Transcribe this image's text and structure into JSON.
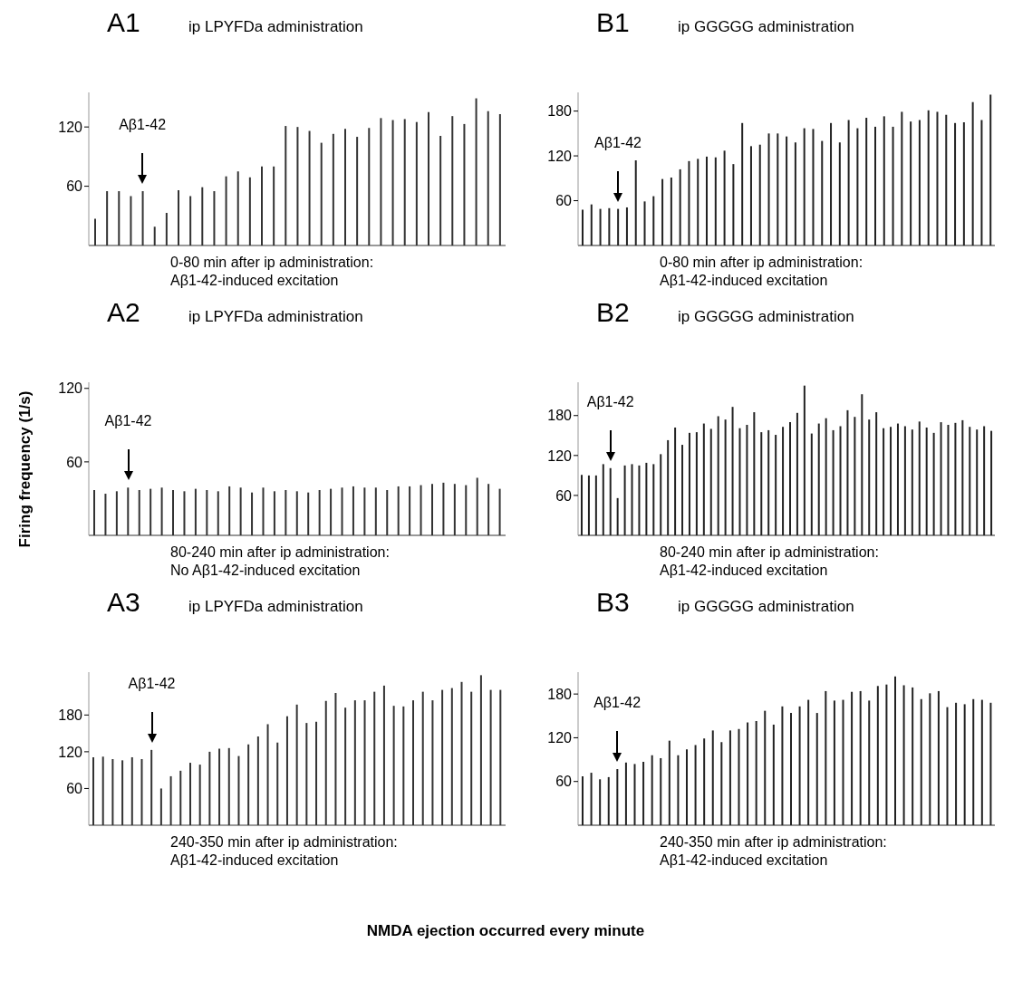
{
  "chart_data": [
    {
      "type": "bar",
      "title": "A1",
      "subtitle": "ip LPYFDa administration",
      "color": "#333333",
      "ylim": [
        0,
        155
      ],
      "yticks": [
        60,
        120
      ],
      "annotations": [
        "Aβ1-42",
        "0-80 min after ip administration:",
        "Aβ1-42-induced excitation"
      ],
      "categories": [
        null,
        null,
        null,
        null,
        null,
        null,
        null,
        null,
        null,
        null,
        null,
        null,
        null,
        null,
        null,
        null,
        null,
        null,
        null,
        null,
        null,
        null,
        null,
        null,
        null,
        null,
        null,
        null,
        null,
        null,
        null,
        null,
        null,
        null,
        null
      ],
      "values": [
        27,
        55,
        55,
        50,
        55,
        19,
        33,
        56,
        50,
        59,
        55,
        70,
        75,
        69,
        80,
        80,
        121,
        120,
        116,
        104,
        113,
        118,
        110,
        119,
        129,
        127,
        128,
        125,
        135,
        111,
        131,
        123,
        149,
        136,
        133
      ]
    },
    {
      "type": "bar",
      "title": "B1",
      "subtitle": "ip GGGGG administration",
      "color": "#222222",
      "ylim": [
        0,
        205
      ],
      "yticks": [
        60,
        120,
        180
      ],
      "annotations": [
        "Aβ1-42",
        "0-80 min after ip administration:",
        "Aβ1-42-induced excitation"
      ],
      "categories": [
        null,
        null,
        null,
        null,
        null,
        null,
        null,
        null,
        null,
        null,
        null,
        null,
        null,
        null,
        null,
        null,
        null,
        null,
        null,
        null,
        null,
        null,
        null,
        null,
        null,
        null,
        null,
        null,
        null,
        null,
        null,
        null,
        null,
        null,
        null,
        null,
        null,
        null,
        null,
        null,
        null,
        null,
        null,
        null,
        null,
        null,
        null
      ],
      "values": [
        48,
        55,
        49,
        50,
        49,
        51,
        114,
        59,
        66,
        89,
        91,
        102,
        113,
        116,
        119,
        118,
        127,
        109,
        164,
        133,
        135,
        150,
        150,
        146,
        138,
        157,
        156,
        140,
        164,
        138,
        168,
        157,
        171,
        159,
        173,
        159,
        179,
        166,
        168,
        181,
        179,
        175,
        164,
        165,
        192,
        168,
        202
      ]
    },
    {
      "type": "bar",
      "title": "A2",
      "subtitle": "ip LPYFDa administration",
      "color": "#333333",
      "ylim": [
        0,
        125
      ],
      "yticks": [
        60,
        120
      ],
      "ylabel": "Firing frequency (1/s)",
      "annotations": [
        "Aβ1-42",
        "80-240 min after ip administration:",
        "No Aβ1-42-induced excitation"
      ],
      "categories": [
        null,
        null,
        null,
        null,
        null,
        null,
        null,
        null,
        null,
        null,
        null,
        null,
        null,
        null,
        null,
        null,
        null,
        null,
        null,
        null,
        null,
        null,
        null,
        null,
        null,
        null,
        null,
        null,
        null,
        null,
        null,
        null,
        null,
        null,
        null,
        null,
        null
      ],
      "values": [
        37,
        34,
        36,
        39,
        37,
        38,
        39,
        37,
        36,
        38,
        37,
        36,
        40,
        39,
        35,
        39,
        36,
        37,
        36,
        35,
        37,
        38,
        39,
        40,
        39,
        39,
        37,
        40,
        40,
        41,
        42,
        43,
        42,
        41,
        47,
        42,
        38
      ]
    },
    {
      "type": "bar",
      "title": "B2",
      "subtitle": "ip GGGGG administration",
      "color": "#222222",
      "ylim": [
        0,
        230
      ],
      "yticks": [
        60,
        120,
        180
      ],
      "annotations": [
        "Aβ1-42",
        "80-240 min after ip administration:",
        "Aβ1-42-induced excitation"
      ],
      "categories": [
        null,
        null,
        null,
        null,
        null,
        null,
        null,
        null,
        null,
        null,
        null,
        null,
        null,
        null,
        null,
        null,
        null,
        null,
        null,
        null,
        null,
        null,
        null,
        null,
        null,
        null,
        null,
        null,
        null,
        null,
        null,
        null,
        null,
        null,
        null,
        null,
        null,
        null,
        null,
        null,
        null,
        null,
        null,
        null,
        null,
        null,
        null,
        null,
        null,
        null,
        null,
        null,
        null,
        null,
        null,
        null,
        null,
        null
      ],
      "values": [
        91,
        90,
        90,
        107,
        101,
        56,
        105,
        107,
        105,
        109,
        107,
        122,
        143,
        162,
        136,
        154,
        155,
        168,
        160,
        179,
        174,
        193,
        161,
        166,
        185,
        155,
        158,
        151,
        163,
        170,
        184,
        225,
        153,
        168,
        176,
        158,
        164,
        188,
        178,
        212,
        174,
        185,
        161,
        163,
        168,
        164,
        159,
        171,
        162,
        154,
        170,
        166,
        169,
        173,
        163,
        159,
        164,
        157
      ]
    },
    {
      "type": "bar",
      "title": "A3",
      "subtitle": "ip LPYFDa administration",
      "color": "#333333",
      "ylim": [
        0,
        250
      ],
      "yticks": [
        60,
        120,
        180
      ],
      "xlabel": "NMDA ejection occurred every minute",
      "annotations": [
        "Aβ1-42",
        "240-350 min after ip administration:",
        "Aβ1-42-induced excitation"
      ],
      "categories": [
        null,
        null,
        null,
        null,
        null,
        null,
        null,
        null,
        null,
        null,
        null,
        null,
        null,
        null,
        null,
        null,
        null,
        null,
        null,
        null,
        null,
        null,
        null,
        null,
        null,
        null,
        null,
        null,
        null,
        null,
        null,
        null,
        null,
        null,
        null,
        null,
        null,
        null,
        null,
        null,
        null,
        null,
        null
      ],
      "values": [
        111,
        112,
        108,
        106,
        111,
        108,
        123,
        60,
        80,
        89,
        102,
        99,
        120,
        125,
        126,
        113,
        132,
        145,
        165,
        135,
        178,
        197,
        167,
        169,
        203,
        216,
        192,
        204,
        204,
        218,
        228,
        195,
        194,
        204,
        218,
        204,
        221,
        224,
        234,
        218,
        245,
        221,
        221
      ]
    },
    {
      "type": "bar",
      "title": "B3",
      "subtitle": "ip GGGGG administration",
      "color": "#222222",
      "ylim": [
        0,
        210
      ],
      "yticks": [
        60,
        120,
        180
      ],
      "annotations": [
        "Aβ1-42",
        "240-350 min after ip administration:",
        "Aβ1-42-induced excitation"
      ],
      "categories": [
        null,
        null,
        null,
        null,
        null,
        null,
        null,
        null,
        null,
        null,
        null,
        null,
        null,
        null,
        null,
        null,
        null,
        null,
        null,
        null,
        null,
        null,
        null,
        null,
        null,
        null,
        null,
        null,
        null,
        null,
        null,
        null,
        null,
        null,
        null,
        null,
        null,
        null,
        null,
        null,
        null,
        null,
        null,
        null,
        null,
        null,
        null,
        null
      ],
      "values": [
        67,
        72,
        63,
        66,
        77,
        86,
        84,
        87,
        96,
        92,
        116,
        96,
        104,
        110,
        119,
        130,
        114,
        130,
        132,
        141,
        143,
        157,
        138,
        163,
        154,
        163,
        172,
        154,
        184,
        171,
        172,
        183,
        184,
        171,
        191,
        193,
        204,
        192,
        189,
        173,
        181,
        184,
        162,
        168,
        166,
        173,
        172,
        168
      ]
    }
  ]
}
